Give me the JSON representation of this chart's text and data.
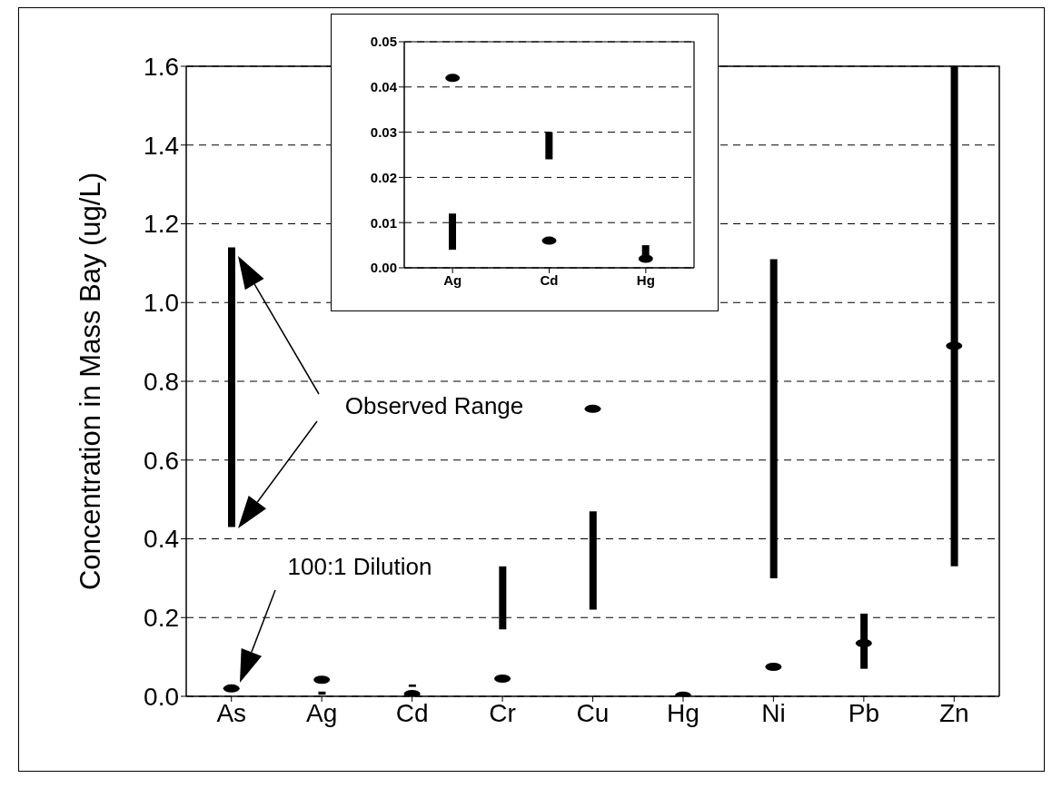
{
  "chart_data": [
    {
      "type": "bar",
      "categories": [
        "As",
        "Ag",
        "Cd",
        "Cr",
        "Cu",
        "Hg",
        "Ni",
        "Pb",
        "Zn"
      ],
      "series": [
        {
          "color": "#000000",
          "base": [
            0.43,
            0.004,
            0.024,
            0.17,
            0.22,
            0.002,
            0.3,
            0.07,
            0.33
          ],
          "values": [
            0.71,
            0.008,
            0.006,
            0.16,
            0.25,
            0.003,
            0.81,
            0.14,
            1.27
          ]
        },
        {
          "type": "scatter",
          "color": "#000000",
          "values": [
            0.02,
            0.042,
            0.006,
            0.045,
            0.73,
            0.002,
            0.075,
            0.135,
            0.89
          ]
        }
      ],
      "ylabel": "Concentration in Mass Bay (ug/L)",
      "ylim": [
        0,
        1.6
      ],
      "yticks": [
        {
          "value": 0,
          "label": "0.0"
        },
        {
          "value": 0.2,
          "label": "0.2"
        },
        {
          "value": 0.4,
          "label": "0.4"
        },
        {
          "value": 0.6,
          "label": "0.6"
        },
        {
          "value": 0.8,
          "label": "0.8"
        },
        {
          "value": 1,
          "label": "1.0"
        },
        {
          "value": 1.2,
          "label": "1.2"
        },
        {
          "value": 1.4,
          "label": "1.4"
        },
        {
          "value": 1.6,
          "label": "1.6"
        }
      ],
      "grid": "y",
      "annotations": [
        "Observed Range",
        "100:1 Dilution"
      ]
    },
    {
      "type": "bar",
      "categories": [
        "Ag",
        "Cd",
        "Hg"
      ],
      "series": [
        {
          "color": "#000000",
          "base": [
            0.004,
            0.024,
            0.002
          ],
          "values": [
            0.008,
            0.006,
            0.003
          ]
        },
        {
          "type": "scatter",
          "color": "#000000",
          "values": [
            0.042,
            0.006,
            0.002
          ]
        }
      ],
      "ylim": [
        0,
        0.05
      ],
      "yticks": [
        {
          "value": 0,
          "label": "0.00"
        },
        {
          "value": 0.01,
          "label": "0.01"
        },
        {
          "value": 0.02,
          "label": "0.02"
        },
        {
          "value": 0.03,
          "label": "0.03"
        },
        {
          "value": 0.04,
          "label": "0.04"
        },
        {
          "value": 0.05,
          "label": "0.05"
        }
      ],
      "grid": "y"
    }
  ]
}
